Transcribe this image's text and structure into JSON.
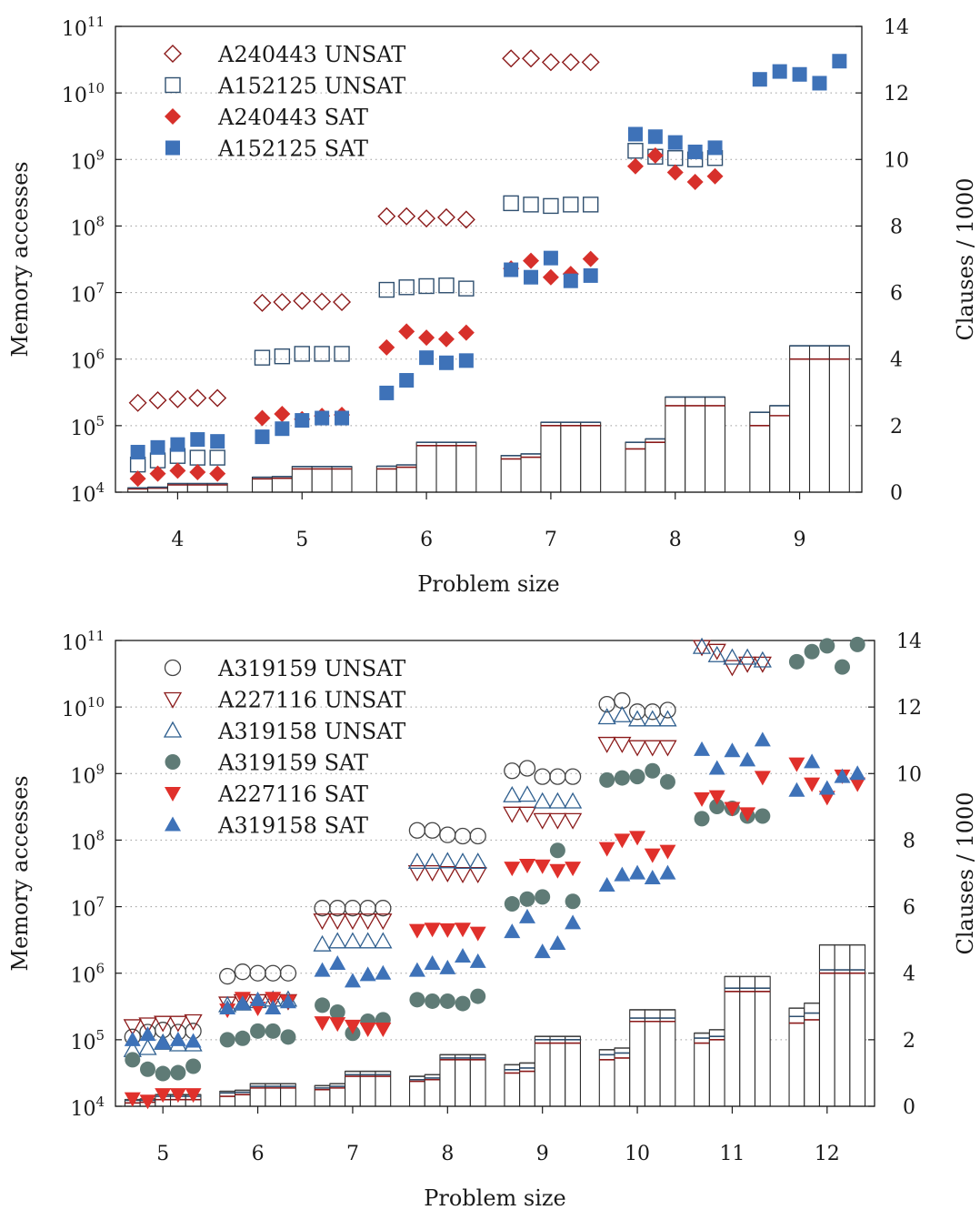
{
  "chart_data": [
    {
      "type": "scatter",
      "xlabel": "Problem size",
      "ylabel": "Memory accesses",
      "y2label": "Clauses / 1000",
      "yscale": "log",
      "ylim": [
        10000,
        100000000000
      ],
      "y2lim": [
        0,
        14
      ],
      "x_ticks": [
        "4",
        "5",
        "6",
        "7",
        "8",
        "9"
      ],
      "y_ticks": [
        "10^4",
        "10^5",
        "10^6",
        "10^7",
        "10^8",
        "10^9",
        "10^10",
        "10^11"
      ],
      "y2_ticks": [
        "0",
        "2",
        "4",
        "6",
        "8",
        "10",
        "12",
        "14"
      ],
      "grid": "horizontal-dotted",
      "legend_position": "top-left",
      "series": [
        {
          "name": "A240443 UNSAT",
          "marker": "diamond-open",
          "color": "#8b1a1a",
          "values": [
            [
              220000,
              240000,
              250000,
              260000,
              260000
            ],
            [
              7000000,
              7200000,
              7500000,
              7300000,
              7200000
            ],
            [
              140000000,
              140000000,
              130000000,
              135000000,
              125000000
            ],
            [
              33000000000,
              33000000000,
              29000000000,
              29000000000,
              29000000000
            ],
            [],
            []
          ]
        },
        {
          "name": "A152125 UNSAT",
          "marker": "square-open",
          "color": "#2f4f6f",
          "values": [
            [
              26000,
              30000,
              35000,
              33000,
              33000
            ],
            [
              1050000,
              1100000,
              1200000,
              1200000,
              1200000
            ],
            [
              11000000,
              12000000,
              12500000,
              12800000,
              11500000
            ],
            [
              220000000,
              210000000,
              200000000,
              210000000,
              210000000
            ],
            [
              1350000000,
              1100000000,
              1050000000,
              1000000000,
              1050000000
            ],
            []
          ]
        },
        {
          "name": "A240443 SAT",
          "marker": "diamond-filled",
          "color": "#d7302b",
          "values": [
            [
              16000,
              19000,
              21000,
              20000,
              19000
            ],
            [
              130000,
              150000,
              125000,
              140000,
              145000
            ],
            [
              1500000,
              2600000,
              2100000,
              2000000,
              2500000
            ],
            [
              23000000,
              30000000,
              17000000,
              19000000,
              32000000
            ],
            [
              790000000,
              1150000000,
              640000000,
              460000000,
              560000000
            ],
            []
          ]
        },
        {
          "name": "A152125 SAT",
          "marker": "square-filled",
          "color": "#3e72b8",
          "values": [
            [
              40000,
              47000,
              52000,
              62000,
              58000
            ],
            [
              68000,
              90000,
              120000,
              130000,
              130000
            ],
            [
              310000,
              480000,
              1050000,
              880000,
              950000
            ],
            [
              22000000,
              17000000,
              33000000,
              15000000,
              18000000
            ],
            [
              2400000000,
              2200000000,
              1800000000,
              1300000000,
              1500000000
            ],
            [
              16000000000,
              21000000000,
              19000000000,
              14000000000,
              30000000000
            ]
          ]
        }
      ],
      "clauses_per_1000": {
        "description_series": [
          "A240443",
          "A152125"
        ],
        "groups": [
          [
            [
              0.1,
              0.13
            ],
            [
              0.12,
              0.15
            ],
            [
              0.22,
              0.26
            ],
            [
              0.22,
              0.26
            ],
            [
              0.22,
              0.26
            ]
          ],
          [
            [
              0.4,
              0.45
            ],
            [
              0.42,
              0.47
            ],
            [
              0.7,
              0.77
            ],
            [
              0.7,
              0.77
            ],
            [
              0.7,
              0.77
            ]
          ],
          [
            [
              0.7,
              0.78
            ],
            [
              0.75,
              0.82
            ],
            [
              1.4,
              1.5
            ],
            [
              1.4,
              1.5
            ],
            [
              1.4,
              1.5
            ]
          ],
          [
            [
              1.0,
              1.1
            ],
            [
              1.05,
              1.15
            ],
            [
              2.0,
              2.1
            ],
            [
              2.0,
              2.1
            ],
            [
              2.0,
              2.1
            ]
          ],
          [
            [
              1.3,
              1.5
            ],
            [
              1.5,
              1.6
            ],
            [
              2.6,
              2.86
            ],
            [
              2.6,
              2.86
            ],
            [
              2.6,
              2.86
            ]
          ],
          [
            [
              2.0,
              2.4
            ],
            [
              2.3,
              2.6
            ],
            [
              4.0,
              4.4
            ],
            [
              4.0,
              4.4
            ],
            [
              4.0,
              4.4
            ]
          ]
        ]
      }
    },
    {
      "type": "scatter",
      "xlabel": "Problem size",
      "ylabel": "Memory accesses",
      "y2label": "Clauses / 1000",
      "yscale": "log",
      "ylim": [
        10000,
        100000000000
      ],
      "y2lim": [
        0,
        14
      ],
      "x_ticks": [
        "5",
        "6",
        "7",
        "8",
        "9",
        "10",
        "11",
        "12"
      ],
      "y_ticks": [
        "10^4",
        "10^5",
        "10^6",
        "10^7",
        "10^8",
        "10^9",
        "10^10",
        "10^11"
      ],
      "y2_ticks": [
        "0",
        "2",
        "4",
        "6",
        "8",
        "10",
        "12",
        "14"
      ],
      "grid": "horizontal-dotted",
      "legend_position": "top-left",
      "series": [
        {
          "name": "A319159 UNSAT",
          "marker": "circle-open",
          "color": "#444444",
          "values": [
            [
              110000,
              130000,
              140000,
              130000,
              135000
            ],
            [
              900000,
              1050000,
              1000000,
              1000000,
              1000000
            ],
            [
              9500000,
              9500000,
              9500000,
              9500000,
              9500000
            ],
            [
              140000000,
              140000000,
              120000000,
              115000000,
              115000000
            ],
            [
              1100000000,
              1200000000,
              900000000,
              900000000,
              900000000
            ],
            [
              11000000000,
              12500000000,
              8500000000,
              8500000000,
              9000000000
            ],
            [],
            []
          ]
        },
        {
          "name": "A227116 UNSAT",
          "marker": "triangle-down-open",
          "color": "#8b1a1a",
          "values": [
            [
              160000,
              170000,
              180000,
              180000,
              190000
            ],
            [
              350000,
              380000,
              380000,
              380000,
              380000
            ],
            [
              6200000,
              6200000,
              6200000,
              6200000,
              6200000
            ],
            [
              33000000,
              33000000,
              32000000,
              31000000,
              31000000
            ],
            [
              250000000,
              250000000,
              200000000,
              200000000,
              200000000
            ],
            [
              2800000000,
              2800000000,
              2500000000,
              2500000000,
              2500000000
            ],
            [
              80000000000,
              70000000000,
              40000000000,
              45000000000,
              45000000000
            ],
            []
          ]
        },
        {
          "name": "A319158 UNSAT",
          "marker": "triangle-up-open",
          "color": "#2f5f8f",
          "values": [
            [
              70000,
              75000,
              90000,
              85000,
              85000
            ],
            [
              330000,
              350000,
              380000,
              400000,
              400000
            ],
            [
              2700000,
              3000000,
              3000000,
              3000000,
              3000000
            ],
            [
              47000000,
              47000000,
              48000000,
              47000000,
              47000000
            ],
            [
              470000000,
              480000000,
              380000000,
              380000000,
              380000000
            ],
            [
              7000000000,
              7500000000,
              6500000000,
              6500000000,
              6500000000
            ],
            [
              80000000000,
              60000000000,
              55000000000,
              55000000000,
              50000000000
            ],
            []
          ]
        },
        {
          "name": "A319159 SAT",
          "marker": "circle-filled",
          "color": "#5f7b76",
          "values": [
            [
              50000,
              36000,
              31000,
              32000,
              40000
            ],
            [
              100000,
              105000,
              135000,
              135000,
              110000
            ],
            [
              330000,
              260000,
              125000,
              190000,
              200000
            ],
            [
              400000,
              380000,
              380000,
              350000,
              450000
            ],
            [
              11000000,
              13000000,
              14000000,
              70000000,
              12000000
            ],
            [
              800000000,
              860000000,
              900000000,
              1100000000,
              750000000
            ],
            [
              210000000,
              320000000,
              300000000,
              230000000,
              230000000
            ],
            [
              48000000000,
              68000000000,
              83000000000,
              40000000000,
              87000000000
            ]
          ]
        },
        {
          "name": "A227116 SAT",
          "marker": "triangle-down-filled",
          "color": "#e0302b",
          "values": [
            [
              13000,
              12000,
              15000,
              15000,
              15000
            ],
            [
              280000,
              420000,
              300000,
              420000,
              380000
            ],
            [
              180000,
              175000,
              160000,
              145000,
              145000
            ],
            [
              4400000,
              4600000,
              4500000,
              4600000,
              4000000
            ],
            [
              38000000,
              42000000,
              41000000,
              35000000,
              38000000
            ],
            [
              75000000,
              100000000,
              110000000,
              60000000,
              68000000
            ],
            [
              420000000,
              450000000,
              300000000,
              250000000,
              880000000
            ],
            [
              1400000000,
              700000000,
              440000000,
              920000000,
              700000000
            ]
          ]
        },
        {
          "name": "A319158 SAT",
          "marker": "triangle-up-filled",
          "color": "#3e72b8",
          "values": [
            [
              100000,
              120000,
              90000,
              100000,
              95000
            ],
            [
              300000,
              350000,
              400000,
              300000,
              370000
            ],
            [
              1100000,
              1400000,
              760000,
              950000,
              1000000
            ],
            [
              1100000,
              1400000,
              1200000,
              1800000,
              1500000
            ],
            [
              4200000,
              7000000,
              2100000,
              2800000,
              5700000
            ],
            [
              21000000,
              30000000,
              32000000,
              27000000,
              32000000
            ],
            [
              2300000000,
              1200000000,
              2200000000,
              1600000000,
              3200000000
            ],
            [
              560000000,
              1500000000,
              600000000,
              900000000,
              1000000000
            ]
          ]
        }
      ],
      "clauses_per_1000": {
        "description_series": [
          "A319159",
          "A227116",
          "A319158"
        ],
        "groups": [
          [
            [
              0.1,
              0.18,
              0.2
            ],
            [
              0.12,
              0.18,
              0.22
            ],
            [
              0.2,
              0.3,
              0.35
            ],
            [
              0.2,
              0.3,
              0.35
            ],
            [
              0.2,
              0.3,
              0.35
            ]
          ],
          [
            [
              0.3,
              0.4,
              0.45
            ],
            [
              0.35,
              0.42,
              0.48
            ],
            [
              0.55,
              0.6,
              0.68
            ],
            [
              0.55,
              0.6,
              0.68
            ],
            [
              0.55,
              0.6,
              0.68
            ]
          ],
          [
            [
              0.5,
              0.55,
              0.62
            ],
            [
              0.55,
              0.6,
              0.68
            ],
            [
              0.9,
              0.95,
              1.05
            ],
            [
              0.9,
              0.95,
              1.05
            ],
            [
              0.9,
              0.95,
              1.05
            ]
          ],
          [
            [
              0.75,
              0.8,
              0.9
            ],
            [
              0.8,
              0.85,
              0.95
            ],
            [
              1.4,
              1.45,
              1.55
            ],
            [
              1.4,
              1.45,
              1.55
            ],
            [
              1.4,
              1.45,
              1.55
            ]
          ],
          [
            [
              1.0,
              1.1,
              1.25
            ],
            [
              1.05,
              1.15,
              1.3
            ],
            [
              1.9,
              2.0,
              2.1
            ],
            [
              1.9,
              2.0,
              2.1
            ],
            [
              1.9,
              2.0,
              2.1
            ]
          ],
          [
            [
              1.4,
              1.55,
              1.7
            ],
            [
              1.45,
              1.6,
              1.75
            ],
            [
              2.55,
              2.65,
              2.9
            ],
            [
              2.55,
              2.65,
              2.9
            ],
            [
              2.55,
              2.65,
              2.9
            ]
          ],
          [
            [
              1.9,
              2.05,
              2.2
            ],
            [
              2.0,
              2.1,
              2.3
            ],
            [
              3.45,
              3.55,
              3.9
            ],
            [
              3.45,
              3.55,
              3.9
            ],
            [
              3.45,
              3.55,
              3.9
            ]
          ],
          [
            [
              2.5,
              2.7,
              2.95
            ],
            [
              2.6,
              2.8,
              3.1
            ],
            [
              4.0,
              4.1,
              4.85
            ],
            [
              4.0,
              4.1,
              4.85
            ],
            [
              4.0,
              4.1,
              4.85
            ]
          ]
        ]
      }
    }
  ]
}
